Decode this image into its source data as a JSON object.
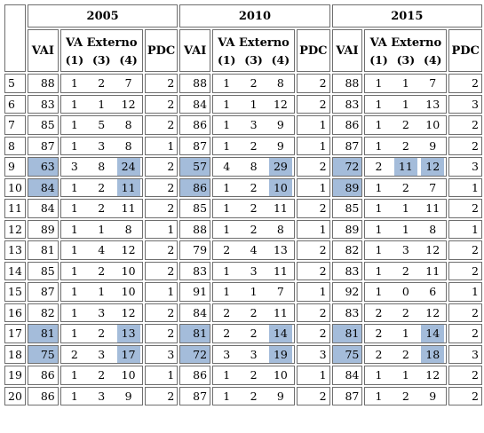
{
  "headers": {
    "years": [
      "2005",
      "2010",
      "2015"
    ],
    "vai": "VAI",
    "va_externo": "VA Externo",
    "va_cols": [
      "(1)",
      "(3)",
      "(4)"
    ],
    "pdc": "PDC"
  },
  "highlight_color": "#a4bcda",
  "rows": [
    {
      "label": "5",
      "y2005": [
        "88",
        "1",
        "2",
        "7",
        "2"
      ],
      "y2010": [
        "88",
        "1",
        "2",
        "8",
        "2"
      ],
      "y2015": [
        "88",
        "1",
        "1",
        "7",
        "2"
      ]
    },
    {
      "label": "6",
      "y2005": [
        "83",
        "1",
        "1",
        "12",
        "2"
      ],
      "y2010": [
        "84",
        "1",
        "1",
        "12",
        "2"
      ],
      "y2015": [
        "83",
        "1",
        "1",
        "13",
        "3"
      ]
    },
    {
      "label": "7",
      "y2005": [
        "85",
        "1",
        "5",
        "8",
        "2"
      ],
      "y2010": [
        "86",
        "1",
        "3",
        "9",
        "1"
      ],
      "y2015": [
        "86",
        "1",
        "2",
        "10",
        "2"
      ]
    },
    {
      "label": "8",
      "y2005": [
        "87",
        "1",
        "3",
        "8",
        "1"
      ],
      "y2010": [
        "87",
        "1",
        "2",
        "9",
        "1"
      ],
      "y2015": [
        "87",
        "1",
        "2",
        "9",
        "2"
      ]
    },
    {
      "label": "9",
      "y2005": [
        "63",
        "3",
        "8",
        "24",
        "2"
      ],
      "y2010": [
        "57",
        "4",
        "8",
        "29",
        "2"
      ],
      "y2015": [
        "72",
        "2",
        "11",
        "12",
        "3"
      ]
    },
    {
      "label": "10",
      "y2005": [
        "84",
        "1",
        "2",
        "11",
        "2"
      ],
      "y2010": [
        "86",
        "1",
        "2",
        "10",
        "1"
      ],
      "y2015": [
        "89",
        "1",
        "2",
        "7",
        "1"
      ]
    },
    {
      "label": "11",
      "y2005": [
        "84",
        "1",
        "2",
        "11",
        "2"
      ],
      "y2010": [
        "85",
        "1",
        "2",
        "11",
        "2"
      ],
      "y2015": [
        "85",
        "1",
        "1",
        "11",
        "2"
      ]
    },
    {
      "label": "12",
      "y2005": [
        "89",
        "1",
        "1",
        "8",
        "1"
      ],
      "y2010": [
        "88",
        "1",
        "2",
        "8",
        "1"
      ],
      "y2015": [
        "89",
        "1",
        "1",
        "8",
        "1"
      ]
    },
    {
      "label": "13",
      "y2005": [
        "81",
        "1",
        "4",
        "12",
        "2"
      ],
      "y2010": [
        "79",
        "2",
        "4",
        "13",
        "2"
      ],
      "y2015": [
        "82",
        "1",
        "3",
        "12",
        "2"
      ]
    },
    {
      "label": "14",
      "y2005": [
        "85",
        "1",
        "2",
        "10",
        "2"
      ],
      "y2010": [
        "83",
        "1",
        "3",
        "11",
        "2"
      ],
      "y2015": [
        "83",
        "1",
        "2",
        "11",
        "2"
      ]
    },
    {
      "label": "15",
      "y2005": [
        "87",
        "1",
        "1",
        "10",
        "1"
      ],
      "y2010": [
        "91",
        "1",
        "1",
        "7",
        "1"
      ],
      "y2015": [
        "92",
        "1",
        "0",
        "6",
        "1"
      ]
    },
    {
      "label": "16",
      "y2005": [
        "82",
        "1",
        "3",
        "12",
        "2"
      ],
      "y2010": [
        "84",
        "2",
        "2",
        "11",
        "2"
      ],
      "y2015": [
        "83",
        "2",
        "2",
        "12",
        "2"
      ]
    },
    {
      "label": "17",
      "y2005": [
        "81",
        "1",
        "2",
        "13",
        "2"
      ],
      "y2010": [
        "81",
        "2",
        "2",
        "14",
        "2"
      ],
      "y2015": [
        "81",
        "2",
        "1",
        "14",
        "2"
      ]
    },
    {
      "label": "18",
      "y2005": [
        "75",
        "2",
        "3",
        "17",
        "3"
      ],
      "y2010": [
        "72",
        "3",
        "3",
        "19",
        "3"
      ],
      "y2015": [
        "75",
        "2",
        "2",
        "18",
        "3"
      ]
    },
    {
      "label": "19",
      "y2005": [
        "86",
        "1",
        "2",
        "10",
        "1"
      ],
      "y2010": [
        "86",
        "1",
        "2",
        "10",
        "1"
      ],
      "y2015": [
        "84",
        "1",
        "1",
        "12",
        "2"
      ]
    },
    {
      "label": "20",
      "y2005": [
        "86",
        "1",
        "3",
        "9",
        "2"
      ],
      "y2010": [
        "87",
        "1",
        "2",
        "9",
        "2"
      ],
      "y2015": [
        "87",
        "1",
        "2",
        "9",
        "2"
      ]
    }
  ],
  "highlighted": {
    "9": {
      "y2005": [
        0,
        3
      ],
      "y2010": [
        0,
        3
      ],
      "y2015": [
        0,
        2,
        3
      ]
    },
    "10": {
      "y2005": [
        0,
        3
      ],
      "y2010": [
        0,
        3
      ],
      "y2015": [
        0
      ]
    },
    "17": {
      "y2005": [
        0,
        3
      ],
      "y2010": [
        0,
        3
      ],
      "y2015": [
        0,
        3
      ]
    },
    "18": {
      "y2005": [
        0,
        3
      ],
      "y2010": [
        0,
        3
      ],
      "y2015": [
        0,
        3
      ]
    }
  }
}
